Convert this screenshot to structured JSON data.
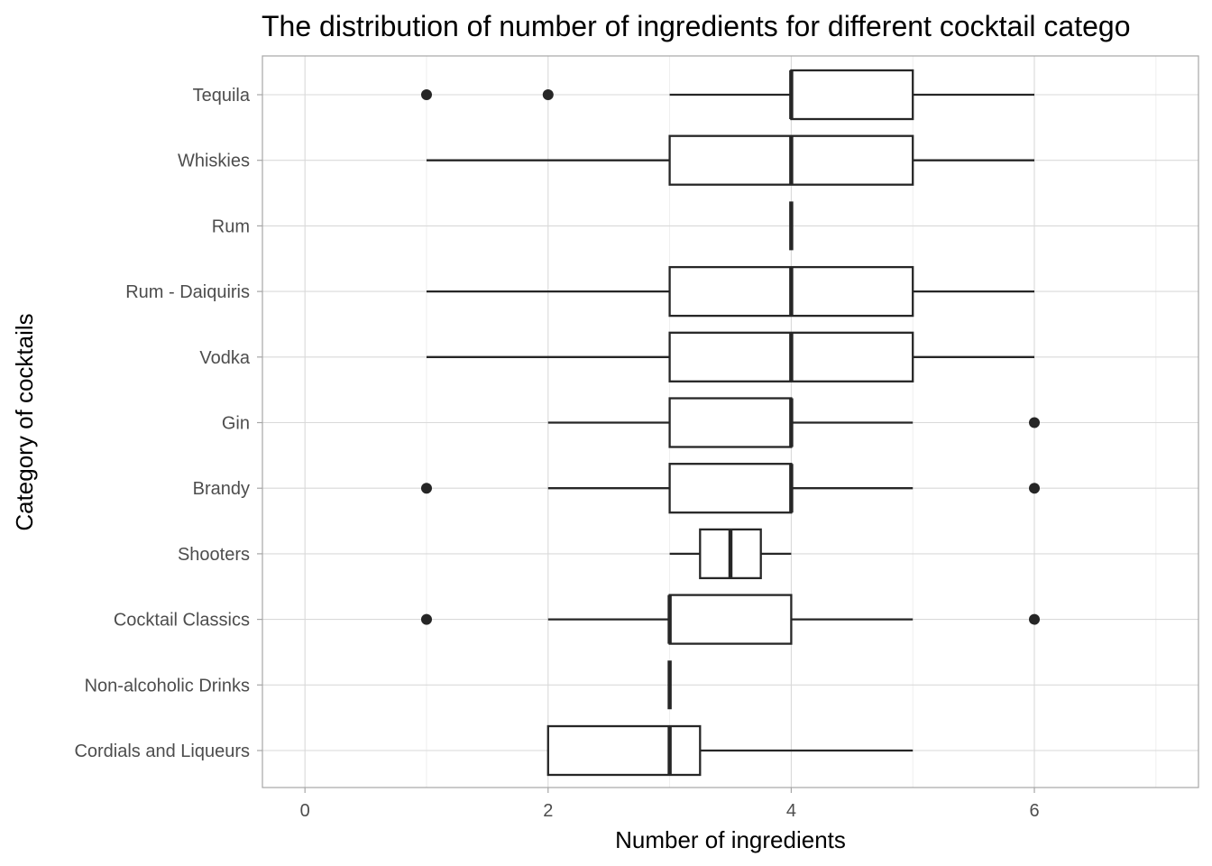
{
  "chart_data": {
    "type": "boxplot",
    "title": "The distribution of number of ingredients for different cocktail catego",
    "xlabel": "Number of ingredients",
    "ylabel": "Category of cocktails",
    "xlim": [
      -0.35,
      7.35
    ],
    "x_ticks": [
      0,
      2,
      4,
      6
    ],
    "x_tick_labels": [
      "0",
      "2",
      "4",
      "6"
    ],
    "grid": true,
    "colors": {
      "box_stroke": "#262626",
      "box_fill": "#ffffff",
      "grid": "#d9d9d9",
      "panel_border": "#a6a6a6"
    },
    "categories": [
      {
        "name": "Tequila",
        "whisker_low": 3,
        "q1": 4,
        "median": 4,
        "q3": 5,
        "whisker_high": 6,
        "outliers": [
          1,
          2
        ]
      },
      {
        "name": "Whiskies",
        "whisker_low": 1,
        "q1": 3,
        "median": 4,
        "q3": 5,
        "whisker_high": 6,
        "outliers": []
      },
      {
        "name": "Rum",
        "whisker_low": 4,
        "q1": 4,
        "median": 4,
        "q3": 4,
        "whisker_high": 4,
        "outliers": []
      },
      {
        "name": "Rum - Daiquiris",
        "whisker_low": 1,
        "q1": 3,
        "median": 4,
        "q3": 5,
        "whisker_high": 6,
        "outliers": []
      },
      {
        "name": "Vodka",
        "whisker_low": 1,
        "q1": 3,
        "median": 4,
        "q3": 5,
        "whisker_high": 6,
        "outliers": []
      },
      {
        "name": "Gin",
        "whisker_low": 2,
        "q1": 3,
        "median": 4,
        "q3": 4,
        "whisker_high": 5,
        "outliers": [
          6
        ]
      },
      {
        "name": "Brandy",
        "whisker_low": 2,
        "q1": 3,
        "median": 4,
        "q3": 4,
        "whisker_high": 5,
        "outliers": [
          1,
          6
        ]
      },
      {
        "name": "Shooters",
        "whisker_low": 3,
        "q1": 3.25,
        "median": 3.5,
        "q3": 3.75,
        "whisker_high": 4,
        "outliers": []
      },
      {
        "name": "Cocktail Classics",
        "whisker_low": 2,
        "q1": 3,
        "median": 3,
        "q3": 4,
        "whisker_high": 5,
        "outliers": [
          1,
          6
        ]
      },
      {
        "name": "Non-alcoholic Drinks",
        "whisker_low": 3,
        "q1": 3,
        "median": 3,
        "q3": 3,
        "whisker_high": 3,
        "outliers": []
      },
      {
        "name": "Cordials and Liqueurs",
        "whisker_low": 2,
        "q1": 2,
        "median": 3,
        "q3": 3.25,
        "whisker_high": 5,
        "outliers": []
      }
    ]
  }
}
